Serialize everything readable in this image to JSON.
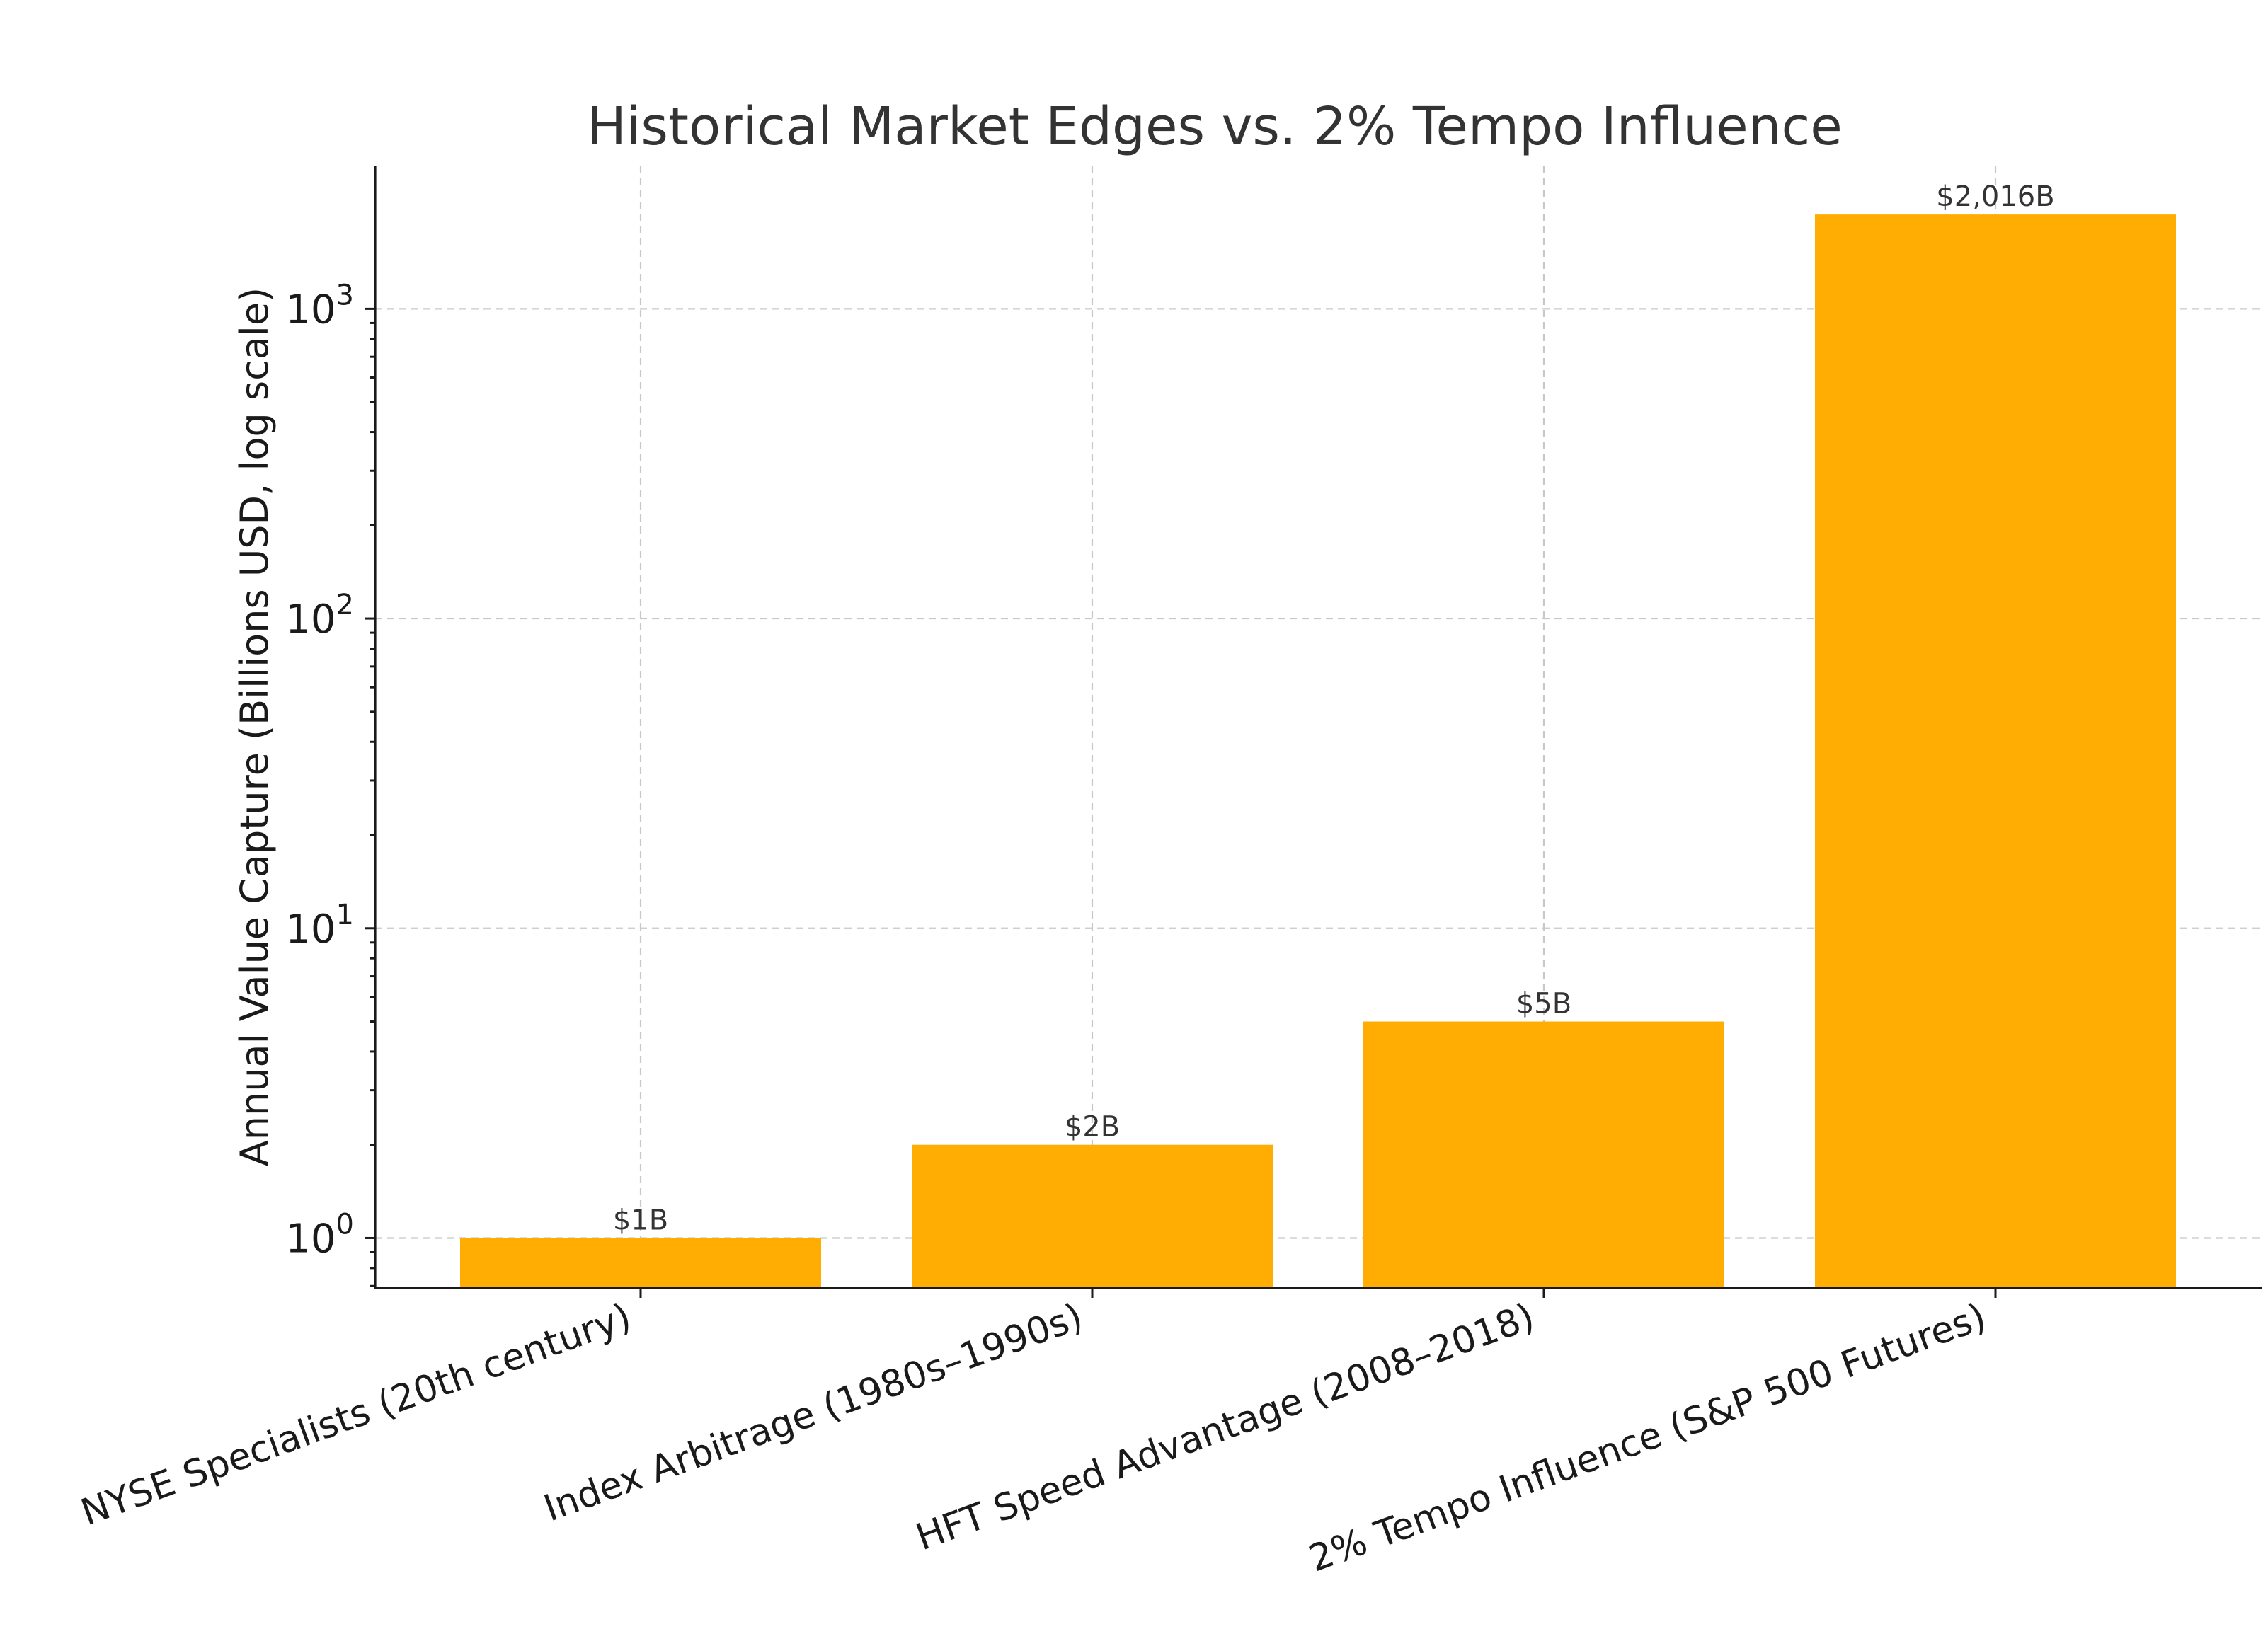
{
  "chart_data": {
    "type": "bar",
    "title": "Historical Market Edges vs. 2% Tempo Influence",
    "xlabel": "",
    "ylabel": "Annual Value Capture (Billions USD, log scale)",
    "y_scale": "log",
    "ylim": [
      0.69,
      2900
    ],
    "grid": true,
    "color": "#FFAD03",
    "categories": [
      "NYSE Specialists (20th century)",
      "Index Arbitrage (1980s–1990s)",
      "HFT Speed Advantage (2008–2018)",
      "2% Tempo Influence (S&P 500 Futures)"
    ],
    "values": [
      1,
      2,
      5,
      2016
    ],
    "data_labels": [
      "$1B",
      "$2B",
      "$5B",
      "$2,016B"
    ],
    "y_ticks": [
      {
        "value": 1,
        "base": "10",
        "exponent": "0"
      },
      {
        "value": 10,
        "base": "10",
        "exponent": "1"
      },
      {
        "value": 100,
        "base": "10",
        "exponent": "2"
      },
      {
        "value": 1000,
        "base": "10",
        "exponent": "3"
      }
    ]
  }
}
